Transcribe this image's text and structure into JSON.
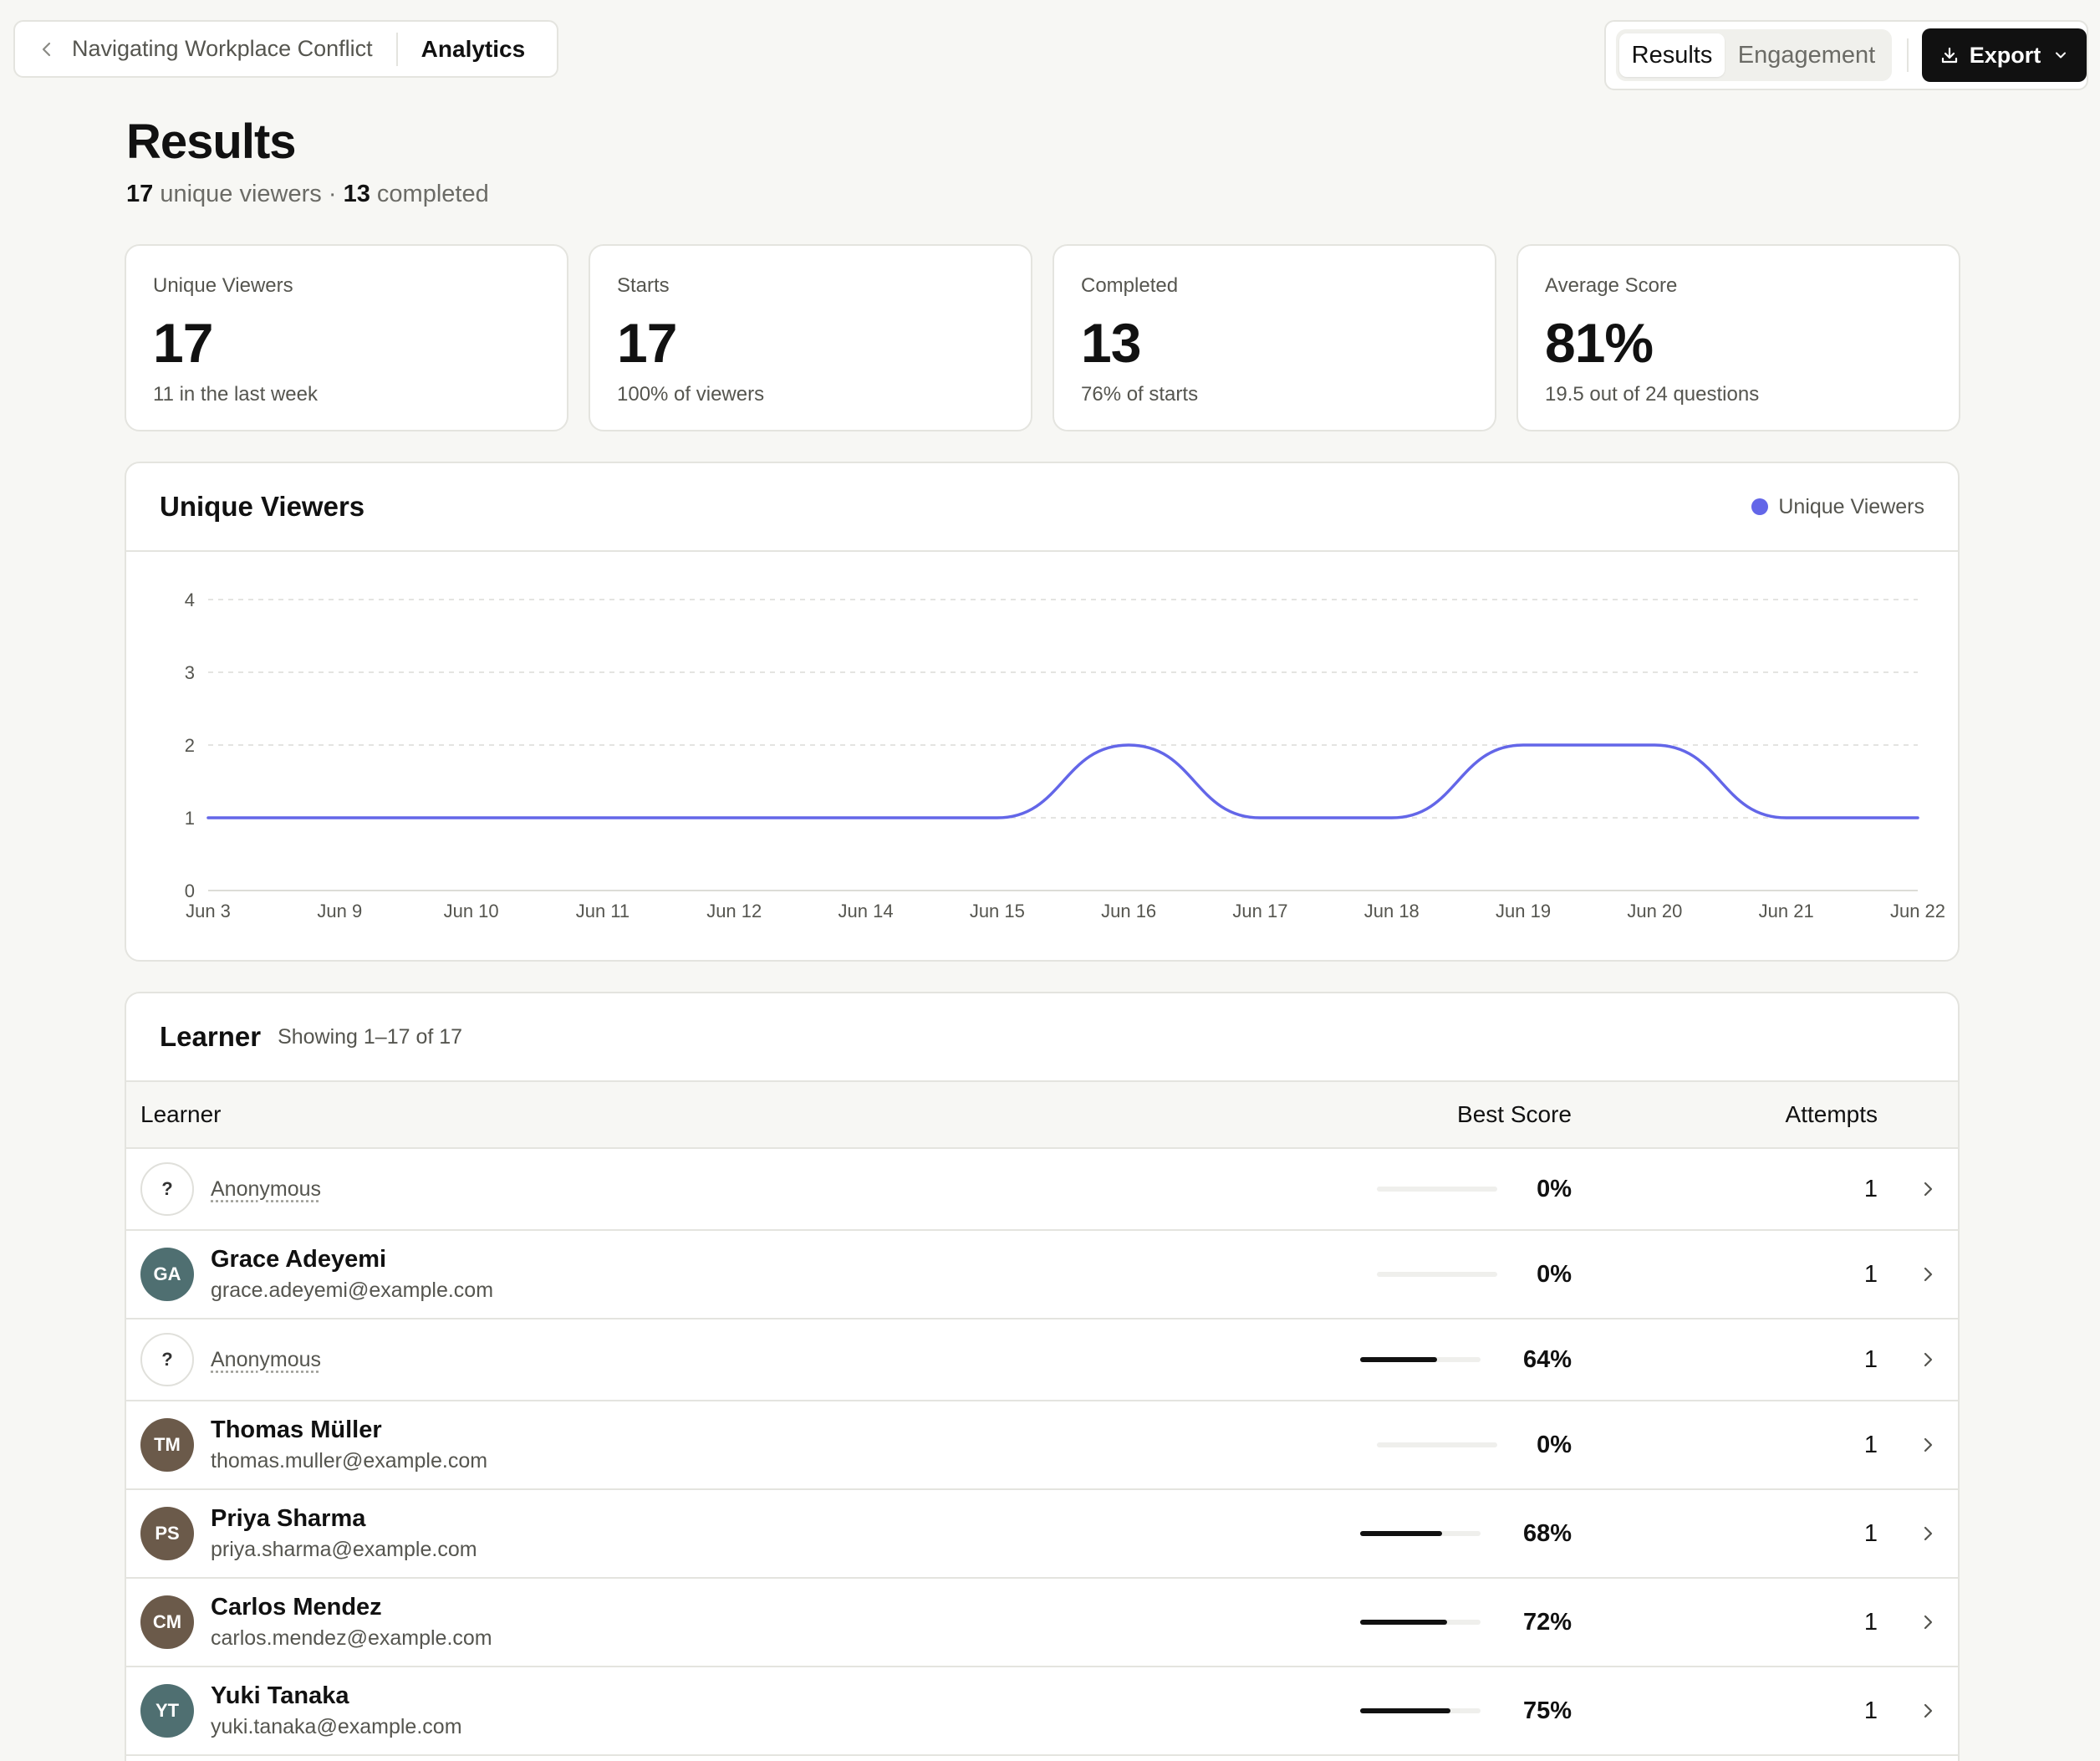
{
  "breadcrumb": {
    "back_label": "Navigating Workplace Conflict",
    "current": "Analytics"
  },
  "view_toggle": {
    "active": "Results",
    "inactive": "Engagement"
  },
  "export_label": "Export",
  "header": {
    "title": "Results",
    "viewers_count": "17",
    "viewers_label": "unique viewers",
    "separator": "·",
    "completed_count": "13",
    "completed_label": "completed"
  },
  "stats": [
    {
      "label": "Unique Viewers",
      "value": "17",
      "note": "11 in the last week"
    },
    {
      "label": "Starts",
      "value": "17",
      "note": "100% of viewers"
    },
    {
      "label": "Completed",
      "value": "13",
      "note": "76% of starts"
    },
    {
      "label": "Average Score",
      "value": "81%",
      "note": "19.5 out of 24 questions"
    }
  ],
  "chart_panel": {
    "title": "Unique Viewers",
    "legend_label": "Unique Viewers"
  },
  "colors": {
    "series": "#6366e8",
    "text_muted": "#55554f"
  },
  "chart_data": {
    "type": "line",
    "title": "Unique Viewers",
    "x": [
      "Jun 3",
      "Jun 9",
      "Jun 10",
      "Jun 11",
      "Jun 12",
      "Jun 14",
      "Jun 15",
      "Jun 16",
      "Jun 17",
      "Jun 18",
      "Jun 19",
      "Jun 20",
      "Jun 21",
      "Jun 22"
    ],
    "series": [
      {
        "name": "Unique Viewers",
        "values": [
          1,
          1,
          1,
          1,
          1,
          1,
          1,
          2,
          1,
          1,
          2,
          2,
          1,
          1
        ]
      }
    ],
    "ylim": [
      0,
      4
    ],
    "yticks": [
      "0",
      "1",
      "2",
      "3",
      "4"
    ],
    "grid": true,
    "legend": "top-right",
    "smooth": true
  },
  "learners_panel": {
    "title": "Learner",
    "showing": "Showing 1–17 of 17",
    "columns": {
      "learner": "Learner",
      "best_score": "Best Score",
      "attempts": "Attempts"
    }
  },
  "learners": [
    {
      "anonymous": true,
      "initials": "?",
      "name": "Anonymous",
      "email": "",
      "score_label": "0%",
      "score": 0,
      "attempts": "1"
    },
    {
      "anonymous": false,
      "initials": "GA",
      "name": "Grace Adeyemi",
      "email": "grace.adeyemi@example.com",
      "score_label": "0%",
      "score": 0,
      "attempts": "1",
      "avatar_color": "#4f6f71"
    },
    {
      "anonymous": true,
      "initials": "?",
      "name": "Anonymous",
      "email": "",
      "score_label": "64%",
      "score": 0.64,
      "attempts": "1"
    },
    {
      "anonymous": false,
      "initials": "TM",
      "name": "Thomas Müller",
      "email": "thomas.muller@example.com",
      "score_label": "0%",
      "score": 0,
      "attempts": "1",
      "avatar_color": "#6b5a4a"
    },
    {
      "anonymous": false,
      "initials": "PS",
      "name": "Priya Sharma",
      "email": "priya.sharma@example.com",
      "score_label": "68%",
      "score": 0.68,
      "attempts": "1",
      "avatar_color": "#6b5a4a"
    },
    {
      "anonymous": false,
      "initials": "CM",
      "name": "Carlos Mendez",
      "email": "carlos.mendez@example.com",
      "score_label": "72%",
      "score": 0.72,
      "attempts": "1",
      "avatar_color": "#6b5a4a"
    },
    {
      "anonymous": false,
      "initials": "YT",
      "name": "Yuki Tanaka",
      "email": "yuki.tanaka@example.com",
      "score_label": "75%",
      "score": 0.75,
      "attempts": "1",
      "avatar_color": "#4f6f71"
    }
  ]
}
